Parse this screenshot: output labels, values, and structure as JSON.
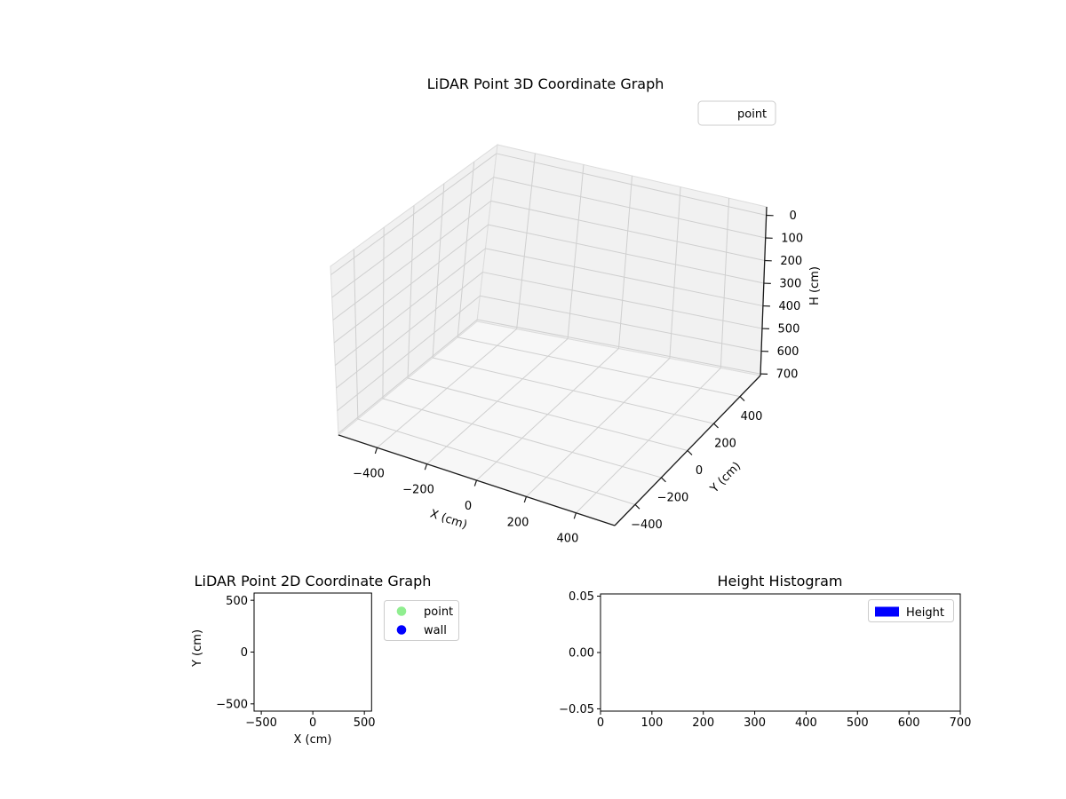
{
  "figure": {
    "background": "#ffffff"
  },
  "colors": {
    "point": "#90EE90",
    "wall": "#0000FF",
    "height": "#0000FF",
    "grid": "#cfcfcf",
    "pane_wall": "#f1f1f1",
    "pane_floor": "#f7f7f7",
    "axis_line": "#1a1a1a"
  },
  "chart_data": [
    {
      "id": "lidar_3d",
      "type": "scatter3d",
      "title": "LiDAR Point 3D Coordinate Graph",
      "xlabel": "X (cm)",
      "ylabel": "Y (cm)",
      "zlabel": "H (cm)",
      "xlim": [
        -500,
        500
      ],
      "ylim": [
        -500,
        500
      ],
      "zlim": [
        0,
        700
      ],
      "z_axis_inverted": true,
      "grid": true,
      "x_ticks": {
        "values": [
          -400,
          -200,
          0,
          200,
          400
        ],
        "labels": [
          "−400",
          "−200",
          "0",
          "200",
          "400"
        ]
      },
      "y_ticks": {
        "values": [
          -400,
          -200,
          0,
          200,
          400
        ],
        "labels": [
          "−400",
          "−200",
          "0",
          "200",
          "400"
        ]
      },
      "z_ticks": {
        "values": [
          0,
          100,
          200,
          300,
          400,
          500,
          600,
          700
        ],
        "labels": [
          "0",
          "100",
          "200",
          "300",
          "400",
          "500",
          "600",
          "700"
        ]
      },
      "legend": {
        "position": "upper right",
        "entries": [
          {
            "label": "point",
            "marker": "none"
          }
        ]
      },
      "series": [
        {
          "name": "point",
          "points": []
        }
      ]
    },
    {
      "id": "lidar_2d",
      "type": "scatter",
      "title": "LiDAR Point 2D Coordinate Graph",
      "xlabel": "X (cm)",
      "ylabel": "Y (cm)",
      "xlim": [
        -570,
        570
      ],
      "ylim": [
        -570,
        570
      ],
      "grid": false,
      "x_ticks": {
        "values": [
          -500,
          0,
          500
        ],
        "labels": [
          "−500",
          "0",
          "500"
        ]
      },
      "y_ticks": {
        "values": [
          500,
          0,
          -500
        ],
        "labels": [
          "500",
          "0",
          "−500"
        ]
      },
      "legend": {
        "position": "outside upper right",
        "entries": [
          {
            "label": "point",
            "color": "#90EE90",
            "marker": "circle"
          },
          {
            "label": "wall",
            "color": "#0000FF",
            "marker": "circle"
          }
        ]
      },
      "series": [
        {
          "name": "point",
          "color": "#90EE90",
          "points": []
        },
        {
          "name": "wall",
          "color": "#0000FF",
          "points": []
        }
      ]
    },
    {
      "id": "height_histogram",
      "type": "bar",
      "title": "Height Histogram",
      "xlabel": "",
      "ylabel": "",
      "xlim": [
        0,
        700
      ],
      "ylim": [
        -0.052,
        0.052
      ],
      "grid": false,
      "x_ticks": {
        "values": [
          0,
          100,
          200,
          300,
          400,
          500,
          600,
          700
        ],
        "labels": [
          "0",
          "100",
          "200",
          "300",
          "400",
          "500",
          "600",
          "700"
        ]
      },
      "y_ticks": {
        "values": [
          0.05,
          0,
          -0.05
        ],
        "labels": [
          "0.05",
          "0.00",
          "−0.05"
        ]
      },
      "legend": {
        "position": "upper right",
        "entries": [
          {
            "label": "Height",
            "color": "#0000FF",
            "marker": "patch"
          }
        ]
      },
      "values": []
    }
  ]
}
